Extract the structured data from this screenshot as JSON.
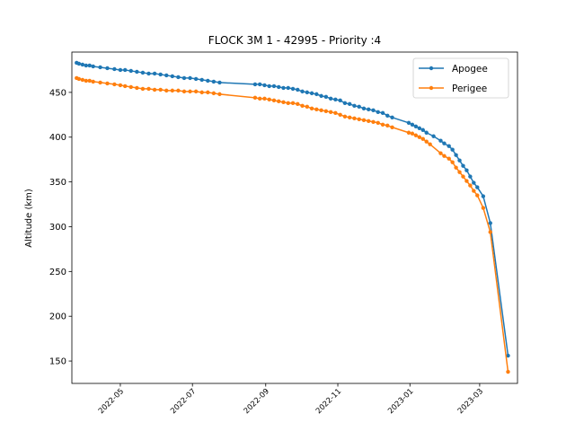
{
  "chart_data": {
    "type": "line",
    "title": "FLOCK 3M 1 - 42995 - Priority :4",
    "xlabel": "",
    "ylabel": "Altitude (km)",
    "x_range": [
      "2022-03-21",
      "2023-04-02"
    ],
    "ylim": [
      125,
      495
    ],
    "yticks": [
      150,
      200,
      250,
      300,
      350,
      400,
      450
    ],
    "xticks": [
      {
        "date": "2022-05-01",
        "label": "2022-05"
      },
      {
        "date": "2022-07-01",
        "label": "2022-07"
      },
      {
        "date": "2022-09-01",
        "label": "2022-09"
      },
      {
        "date": "2022-11-01",
        "label": "2022-11"
      },
      {
        "date": "2023-01-01",
        "label": "2023-01"
      },
      {
        "date": "2023-03-01",
        "label": "2023-03"
      }
    ],
    "legend_position": "top-right",
    "series": [
      {
        "name": "Apogee",
        "color": "#1f77b4",
        "points": [
          [
            "2022-03-25",
            483
          ],
          [
            "2022-03-27",
            482
          ],
          [
            "2022-03-30",
            481
          ],
          [
            "2022-04-02",
            480
          ],
          [
            "2022-04-05",
            480
          ],
          [
            "2022-04-08",
            479
          ],
          [
            "2022-04-14",
            478
          ],
          [
            "2022-04-20",
            477
          ],
          [
            "2022-04-26",
            476
          ],
          [
            "2022-05-01",
            475
          ],
          [
            "2022-05-05",
            475
          ],
          [
            "2022-05-10",
            474
          ],
          [
            "2022-05-15",
            473
          ],
          [
            "2022-05-20",
            472
          ],
          [
            "2022-05-25",
            471
          ],
          [
            "2022-05-30",
            471
          ],
          [
            "2022-06-04",
            470
          ],
          [
            "2022-06-09",
            469
          ],
          [
            "2022-06-14",
            468
          ],
          [
            "2022-06-19",
            467
          ],
          [
            "2022-06-24",
            466
          ],
          [
            "2022-06-29",
            466
          ],
          [
            "2022-07-04",
            465
          ],
          [
            "2022-07-09",
            464
          ],
          [
            "2022-07-14",
            463
          ],
          [
            "2022-07-19",
            462
          ],
          [
            "2022-07-24",
            461
          ],
          [
            "2022-08-23",
            459
          ],
          [
            "2022-08-27",
            459
          ],
          [
            "2022-08-31",
            458
          ],
          [
            "2022-09-04",
            457
          ],
          [
            "2022-09-08",
            457
          ],
          [
            "2022-09-12",
            456
          ],
          [
            "2022-09-16",
            455
          ],
          [
            "2022-09-20",
            455
          ],
          [
            "2022-09-24",
            454
          ],
          [
            "2022-09-28",
            453
          ],
          [
            "2022-10-02",
            451
          ],
          [
            "2022-10-06",
            450
          ],
          [
            "2022-10-10",
            449
          ],
          [
            "2022-10-14",
            448
          ],
          [
            "2022-10-18",
            446
          ],
          [
            "2022-10-22",
            445
          ],
          [
            "2022-10-26",
            443
          ],
          [
            "2022-10-30",
            442
          ],
          [
            "2022-11-03",
            441
          ],
          [
            "2022-11-07",
            438
          ],
          [
            "2022-11-11",
            437
          ],
          [
            "2022-11-15",
            435
          ],
          [
            "2022-11-19",
            434
          ],
          [
            "2022-11-23",
            432
          ],
          [
            "2022-11-27",
            431
          ],
          [
            "2022-12-01",
            430
          ],
          [
            "2022-12-05",
            428
          ],
          [
            "2022-12-09",
            427
          ],
          [
            "2022-12-13",
            424
          ],
          [
            "2022-12-17",
            422
          ],
          [
            "2022-12-31",
            416
          ],
          [
            "2023-01-03",
            414
          ],
          [
            "2023-01-06",
            412
          ],
          [
            "2023-01-09",
            410
          ],
          [
            "2023-01-12",
            408
          ],
          [
            "2023-01-15",
            405
          ],
          [
            "2023-01-21",
            401
          ],
          [
            "2023-01-27",
            396
          ],
          [
            "2023-01-30",
            393
          ],
          [
            "2023-02-03",
            390
          ],
          [
            "2023-02-06",
            386
          ],
          [
            "2023-02-09",
            380
          ],
          [
            "2023-02-12",
            374
          ],
          [
            "2023-02-15",
            368
          ],
          [
            "2023-02-18",
            363
          ],
          [
            "2023-02-21",
            356
          ],
          [
            "2023-02-24",
            349
          ],
          [
            "2023-02-27",
            344
          ],
          [
            "2023-03-04",
            334
          ],
          [
            "2023-03-10",
            304
          ],
          [
            "2023-03-25",
            156
          ]
        ]
      },
      {
        "name": "Perigee",
        "color": "#ff7f0e",
        "points": [
          [
            "2022-03-25",
            466
          ],
          [
            "2022-03-27",
            465
          ],
          [
            "2022-03-30",
            464
          ],
          [
            "2022-04-02",
            463
          ],
          [
            "2022-04-05",
            463
          ],
          [
            "2022-04-08",
            462
          ],
          [
            "2022-04-14",
            461
          ],
          [
            "2022-04-20",
            460
          ],
          [
            "2022-04-26",
            459
          ],
          [
            "2022-05-01",
            458
          ],
          [
            "2022-05-05",
            457
          ],
          [
            "2022-05-10",
            456
          ],
          [
            "2022-05-15",
            455
          ],
          [
            "2022-05-20",
            454
          ],
          [
            "2022-05-25",
            454
          ],
          [
            "2022-05-30",
            453
          ],
          [
            "2022-06-04",
            453
          ],
          [
            "2022-06-09",
            452
          ],
          [
            "2022-06-14",
            452
          ],
          [
            "2022-06-19",
            452
          ],
          [
            "2022-06-24",
            451
          ],
          [
            "2022-06-29",
            451
          ],
          [
            "2022-07-04",
            451
          ],
          [
            "2022-07-09",
            450
          ],
          [
            "2022-07-14",
            450
          ],
          [
            "2022-07-19",
            449
          ],
          [
            "2022-07-24",
            448
          ],
          [
            "2022-08-23",
            444
          ],
          [
            "2022-08-27",
            443
          ],
          [
            "2022-08-31",
            443
          ],
          [
            "2022-09-04",
            442
          ],
          [
            "2022-09-08",
            441
          ],
          [
            "2022-09-12",
            440
          ],
          [
            "2022-09-16",
            439
          ],
          [
            "2022-09-20",
            438
          ],
          [
            "2022-09-24",
            438
          ],
          [
            "2022-09-28",
            437
          ],
          [
            "2022-10-02",
            435
          ],
          [
            "2022-10-06",
            434
          ],
          [
            "2022-10-10",
            432
          ],
          [
            "2022-10-14",
            431
          ],
          [
            "2022-10-18",
            430
          ],
          [
            "2022-10-22",
            429
          ],
          [
            "2022-10-26",
            428
          ],
          [
            "2022-10-30",
            427
          ],
          [
            "2022-11-03",
            425
          ],
          [
            "2022-11-07",
            423
          ],
          [
            "2022-11-11",
            422
          ],
          [
            "2022-11-15",
            421
          ],
          [
            "2022-11-19",
            420
          ],
          [
            "2022-11-23",
            419
          ],
          [
            "2022-11-27",
            418
          ],
          [
            "2022-12-01",
            417
          ],
          [
            "2022-12-05",
            416
          ],
          [
            "2022-12-09",
            414
          ],
          [
            "2022-12-13",
            413
          ],
          [
            "2022-12-17",
            411
          ],
          [
            "2022-12-31",
            405
          ],
          [
            "2023-01-03",
            404
          ],
          [
            "2023-01-06",
            402
          ],
          [
            "2023-01-09",
            400
          ],
          [
            "2023-01-12",
            398
          ],
          [
            "2023-01-15",
            395
          ],
          [
            "2023-01-18",
            392
          ],
          [
            "2023-01-27",
            382
          ],
          [
            "2023-01-30",
            379
          ],
          [
            "2023-02-03",
            376
          ],
          [
            "2023-02-06",
            372
          ],
          [
            "2023-02-09",
            366
          ],
          [
            "2023-02-12",
            361
          ],
          [
            "2023-02-15",
            356
          ],
          [
            "2023-02-18",
            351
          ],
          [
            "2023-02-21",
            346
          ],
          [
            "2023-02-24",
            340
          ],
          [
            "2023-02-27",
            335
          ],
          [
            "2023-03-04",
            321
          ],
          [
            "2023-03-10",
            294
          ],
          [
            "2023-03-25",
            138
          ]
        ]
      }
    ]
  }
}
